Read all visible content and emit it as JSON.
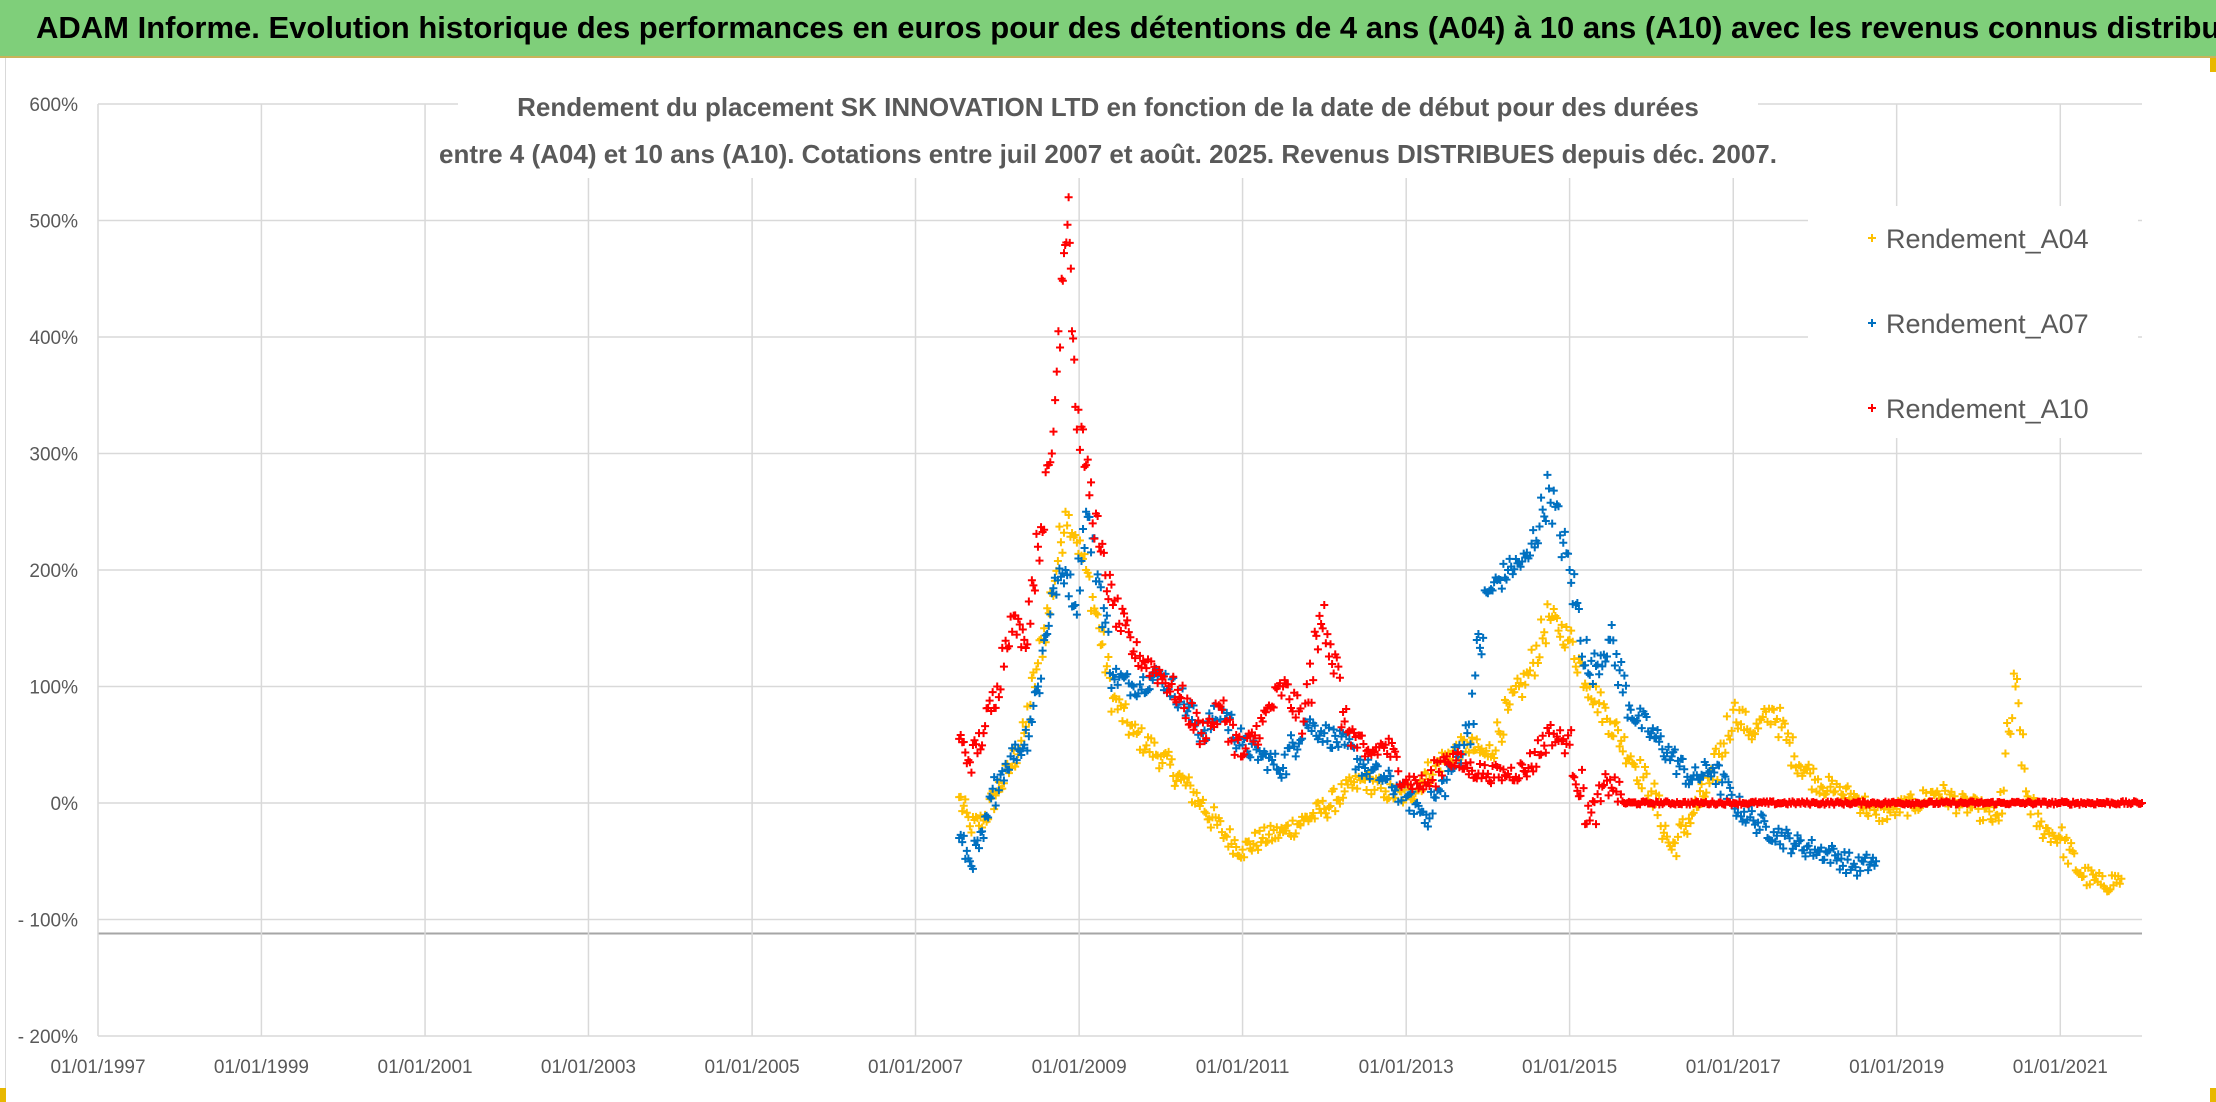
{
  "banner": {
    "title": "ADAM Informe. Evolution historique des performances en euros pour des détentions de 4 ans (A04) à 10 ans (A10) avec les revenus connus distribués"
  },
  "colors": {
    "banner_bg": "#7fcf7a",
    "a04": "#ffc000",
    "a07": "#0070c0",
    "a10": "#ff0000",
    "grid": "#d9d9d9",
    "text": "#595959"
  },
  "chart_data": {
    "type": "scatter",
    "title_line1": "Rendement du placement SK INNOVATION LTD en fonction de la date de début pour des durées",
    "title_line2": "entre 4 (A04) et 10 ans (A10). Cotations entre juil 2007 et août. 2025. Revenus DISTRIBUES depuis déc. 2007.",
    "xlabel": "",
    "ylabel": "",
    "x_range": [
      "1997-01-01",
      "2022-01-01"
    ],
    "ylim": [
      -200,
      600
    ],
    "x_ticks": [
      "01/01/1997",
      "01/01/1999",
      "01/01/2001",
      "01/01/2003",
      "01/01/2005",
      "01/01/2007",
      "01/01/2009",
      "01/01/2011",
      "01/01/2013",
      "01/01/2015",
      "01/01/2017",
      "01/01/2019",
      "01/01/2021"
    ],
    "y_ticks": [
      "600%",
      "500%",
      "400%",
      "300%",
      "200%",
      "100%",
      "0%",
      "- 100%",
      "- 200%"
    ],
    "grid": true,
    "legend_position": "top-right",
    "marker": "+",
    "series": [
      {
        "name": "Rendement_A04",
        "color": "#ffc000",
        "points": [
          [
            "2007-07-15",
            5
          ],
          [
            "2007-09-01",
            -20
          ],
          [
            "2007-11-01",
            -15
          ],
          [
            "2008-01-01",
            10
          ],
          [
            "2008-03-01",
            30
          ],
          [
            "2008-05-01",
            60
          ],
          [
            "2008-07-01",
            120
          ],
          [
            "2008-09-01",
            180
          ],
          [
            "2008-11-01",
            250
          ],
          [
            "2008-12-15",
            230
          ],
          [
            "2009-02-01",
            200
          ],
          [
            "2009-04-01",
            150
          ],
          [
            "2009-06-01",
            90
          ],
          [
            "2009-09-01",
            60
          ],
          [
            "2010-01-01",
            40
          ],
          [
            "2010-04-01",
            20
          ],
          [
            "2010-07-01",
            0
          ],
          [
            "2010-10-01",
            -25
          ],
          [
            "2011-01-01",
            -40
          ],
          [
            "2011-04-01",
            -30
          ],
          [
            "2011-07-01",
            -25
          ],
          [
            "2011-10-01",
            -15
          ],
          [
            "2012-01-01",
            -5
          ],
          [
            "2012-04-01",
            10
          ],
          [
            "2012-07-01",
            20
          ],
          [
            "2012-10-01",
            10
          ],
          [
            "2013-01-01",
            5
          ],
          [
            "2013-04-01",
            25
          ],
          [
            "2013-07-01",
            40
          ],
          [
            "2013-10-01",
            50
          ],
          [
            "2014-01-01",
            40
          ],
          [
            "2014-04-01",
            80
          ],
          [
            "2014-07-01",
            110
          ],
          [
            "2014-10-01",
            160
          ],
          [
            "2015-01-01",
            140
          ],
          [
            "2015-04-01",
            100
          ],
          [
            "2015-07-01",
            70
          ],
          [
            "2015-10-01",
            40
          ],
          [
            "2016-01-01",
            10
          ],
          [
            "2016-04-01",
            -40
          ],
          [
            "2016-07-01",
            -10
          ],
          [
            "2016-10-01",
            20
          ],
          [
            "2017-01-01",
            80
          ],
          [
            "2017-04-01",
            60
          ],
          [
            "2017-07-01",
            80
          ],
          [
            "2017-10-01",
            40
          ],
          [
            "2018-01-01",
            20
          ],
          [
            "2018-04-01",
            10
          ],
          [
            "2018-07-01",
            5
          ],
          [
            "2018-10-01",
            -10
          ],
          [
            "2019-01-01",
            -5
          ],
          [
            "2019-04-01",
            0
          ],
          [
            "2019-07-01",
            10
          ],
          [
            "2019-10-01",
            0
          ],
          [
            "2020-01-01",
            -5
          ],
          [
            "2020-04-01",
            -15
          ],
          [
            "2020-06-15",
            100
          ],
          [
            "2020-08-01",
            10
          ],
          [
            "2020-10-01",
            -20
          ],
          [
            "2021-01-01",
            -30
          ],
          [
            "2021-04-01",
            -60
          ],
          [
            "2021-07-01",
            -70
          ],
          [
            "2021-10-01",
            -65
          ]
        ]
      },
      {
        "name": "Rendement_A07",
        "color": "#0070c0",
        "points": [
          [
            "2007-07-15",
            -30
          ],
          [
            "2007-09-01",
            -50
          ],
          [
            "2007-11-01",
            -30
          ],
          [
            "2008-01-01",
            20
          ],
          [
            "2008-03-01",
            40
          ],
          [
            "2008-05-01",
            50
          ],
          [
            "2008-07-01",
            100
          ],
          [
            "2008-09-01",
            180
          ],
          [
            "2008-11-01",
            200
          ],
          [
            "2008-12-15",
            170
          ],
          [
            "2009-02-01",
            250
          ],
          [
            "2009-04-01",
            190
          ],
          [
            "2009-06-01",
            110
          ],
          [
            "2009-09-01",
            100
          ],
          [
            "2010-01-01",
            110
          ],
          [
            "2010-04-01",
            90
          ],
          [
            "2010-07-01",
            60
          ],
          [
            "2010-10-01",
            80
          ],
          [
            "2011-01-01",
            50
          ],
          [
            "2011-04-01",
            40
          ],
          [
            "2011-07-01",
            30
          ],
          [
            "2011-10-01",
            70
          ],
          [
            "2012-01-01",
            60
          ],
          [
            "2012-04-01",
            50
          ],
          [
            "2012-07-01",
            30
          ],
          [
            "2012-10-01",
            20
          ],
          [
            "2013-01-01",
            5
          ],
          [
            "2013-04-01",
            -10
          ],
          [
            "2013-07-01",
            20
          ],
          [
            "2013-10-01",
            60
          ],
          [
            "2014-01-01",
            180
          ],
          [
            "2014-04-01",
            200
          ],
          [
            "2014-07-01",
            210
          ],
          [
            "2014-10-01",
            270
          ],
          [
            "2015-01-01",
            200
          ],
          [
            "2015-04-01",
            110
          ],
          [
            "2015-07-01",
            140
          ],
          [
            "2015-10-01",
            80
          ],
          [
            "2016-01-01",
            60
          ],
          [
            "2016-04-01",
            40
          ],
          [
            "2016-07-01",
            20
          ],
          [
            "2016-10-01",
            30
          ],
          [
            "2017-01-01",
            0
          ],
          [
            "2017-04-01",
            -15
          ],
          [
            "2017-07-01",
            -25
          ],
          [
            "2017-10-01",
            -35
          ],
          [
            "2018-01-01",
            -40
          ],
          [
            "2018-04-01",
            -45
          ],
          [
            "2018-07-01",
            -55
          ],
          [
            "2018-10-01",
            -50
          ]
        ]
      },
      {
        "name": "Rendement_A10",
        "color": "#ff0000",
        "points": [
          [
            "2007-07-15",
            55
          ],
          [
            "2007-09-01",
            35
          ],
          [
            "2007-11-01",
            60
          ],
          [
            "2008-01-01",
            100
          ],
          [
            "2008-03-01",
            160
          ],
          [
            "2008-05-01",
            140
          ],
          [
            "2008-07-01",
            220
          ],
          [
            "2008-09-01",
            300
          ],
          [
            "2008-10-15",
            450
          ],
          [
            "2008-11-15",
            520
          ],
          [
            "2008-12-15",
            340
          ],
          [
            "2009-02-01",
            290
          ],
          [
            "2009-04-01",
            220
          ],
          [
            "2009-06-01",
            170
          ],
          [
            "2009-09-01",
            130
          ],
          [
            "2010-01-01",
            110
          ],
          [
            "2010-04-01",
            90
          ],
          [
            "2010-07-01",
            60
          ],
          [
            "2010-10-01",
            80
          ],
          [
            "2011-01-01",
            40
          ],
          [
            "2011-04-01",
            70
          ],
          [
            "2011-07-01",
            100
          ],
          [
            "2011-10-01",
            70
          ],
          [
            "2012-01-01",
            170
          ],
          [
            "2012-04-01",
            70
          ],
          [
            "2012-07-01",
            40
          ],
          [
            "2012-10-01",
            50
          ],
          [
            "2013-01-01",
            20
          ],
          [
            "2013-04-01",
            15
          ],
          [
            "2013-07-01",
            40
          ],
          [
            "2013-10-01",
            30
          ],
          [
            "2014-01-01",
            25
          ],
          [
            "2014-04-01",
            25
          ],
          [
            "2014-07-01",
            30
          ],
          [
            "2014-10-01",
            60
          ],
          [
            "2015-01-01",
            50
          ],
          [
            "2015-04-01",
            -15
          ],
          [
            "2015-07-01",
            20
          ],
          [
            "2015-09-01",
            0
          ],
          [
            "2016-01-01",
            0
          ],
          [
            "2017-01-01",
            0
          ],
          [
            "2018-01-01",
            0
          ],
          [
            "2019-01-01",
            0
          ],
          [
            "2020-01-01",
            0
          ],
          [
            "2021-01-01",
            0
          ],
          [
            "2022-01-01",
            0
          ]
        ]
      }
    ]
  }
}
